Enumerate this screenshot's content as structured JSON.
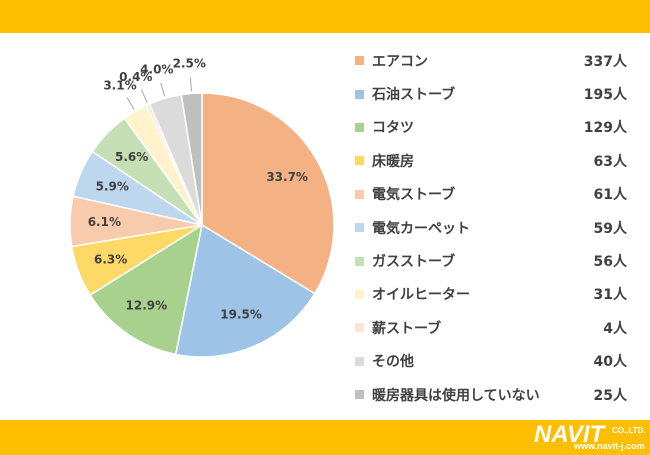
{
  "chart_data": {
    "type": "pie",
    "title": "",
    "categories": [
      "エアコン",
      "石油ストーブ",
      "コタツ",
      "床暖房",
      "電気ストーブ",
      "電気カーペット",
      "ガスストーブ",
      "オイルヒーター",
      "薪ストーブ",
      "その他",
      "暖房器具は使用していない"
    ],
    "values": [
      33.7,
      19.5,
      12.9,
      6.3,
      6.1,
      5.9,
      5.6,
      3.1,
      0.4,
      4.0,
      2.5
    ],
    "value_labels": [
      "33.7%",
      "19.5%",
      "12.9%",
      "6.3%",
      "6.1%",
      "5.9%",
      "5.6%",
      "3.1%",
      "0.4%",
      "4.0%",
      "2.5%"
    ],
    "counts": [
      "337人",
      "195人",
      "129人",
      "63人",
      "61人",
      "59人",
      "56人",
      "31人",
      "4人",
      "40人",
      "25人"
    ],
    "colors": [
      "#f4b183",
      "#9dc3e6",
      "#a9d18e",
      "#ffd966",
      "#f8cbad",
      "#bdd7ee",
      "#c5e0b4",
      "#fff2cc",
      "#fbe5d6",
      "#dbdbdb",
      "#bfbfbf"
    ],
    "start_angle": "12 o'clock",
    "direction": "clockwise",
    "legend": "right"
  },
  "brand": {
    "logo_text": "NAVIT",
    "logo_sub": "CO.,LTD.",
    "logo_url": "www.navit-j.com",
    "band_color": "#fdbe00"
  }
}
